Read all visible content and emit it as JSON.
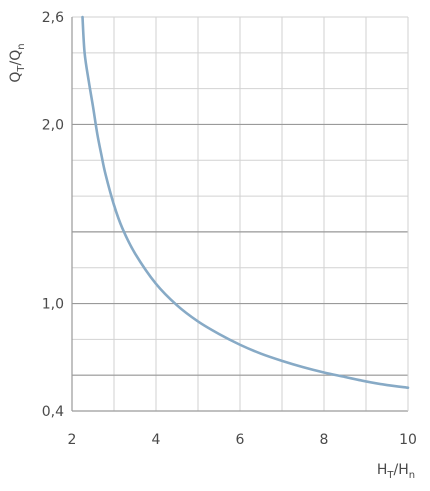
{
  "chart_data": {
    "type": "line",
    "title": "",
    "xlabel": {
      "base": "H",
      "sub": "T",
      "sep": "/",
      "base2": "H",
      "sub2": "n"
    },
    "ylabel": {
      "base": "Q",
      "sub": "T",
      "sep": "/",
      "base2": "Q",
      "sub2": "n"
    },
    "xlim": [
      2,
      10
    ],
    "ylim": [
      0.4,
      2.6
    ],
    "x_ticks": [
      {
        "value": 2,
        "label": "2"
      },
      {
        "value": 4,
        "label": "4"
      },
      {
        "value": 6,
        "label": "6"
      },
      {
        "value": 8,
        "label": "8"
      },
      {
        "value": 10,
        "label": "10"
      }
    ],
    "y_ticks": [
      {
        "value": 0.4,
        "label": "0,4"
      },
      {
        "value": 1.0,
        "label": "1,0"
      },
      {
        "value": 2.0,
        "label": "2,0"
      },
      {
        "value": 2.6,
        "label": "2,6"
      }
    ],
    "y_major_grid": [
      0.6,
      1.0,
      1.4,
      2.0
    ],
    "grid": true,
    "line_color": "#87aac6",
    "grid_color": "#d2d2d2",
    "major_grid_color": "#9a9a9a",
    "series": [
      {
        "x": [
          2.25,
          2.3,
          2.4,
          2.5,
          2.6,
          2.7,
          2.8,
          3.0,
          3.2,
          3.5,
          4.0,
          4.5,
          5.0,
          5.5,
          6.0,
          6.5,
          7.0,
          7.5,
          8.0,
          8.5,
          9.0,
          9.5,
          10.0
        ],
        "y": [
          2.6,
          2.4,
          2.24,
          2.1,
          1.95,
          1.83,
          1.72,
          1.55,
          1.42,
          1.28,
          1.11,
          0.99,
          0.9,
          0.83,
          0.77,
          0.72,
          0.68,
          0.645,
          0.615,
          0.59,
          0.565,
          0.545,
          0.53
        ]
      }
    ]
  }
}
